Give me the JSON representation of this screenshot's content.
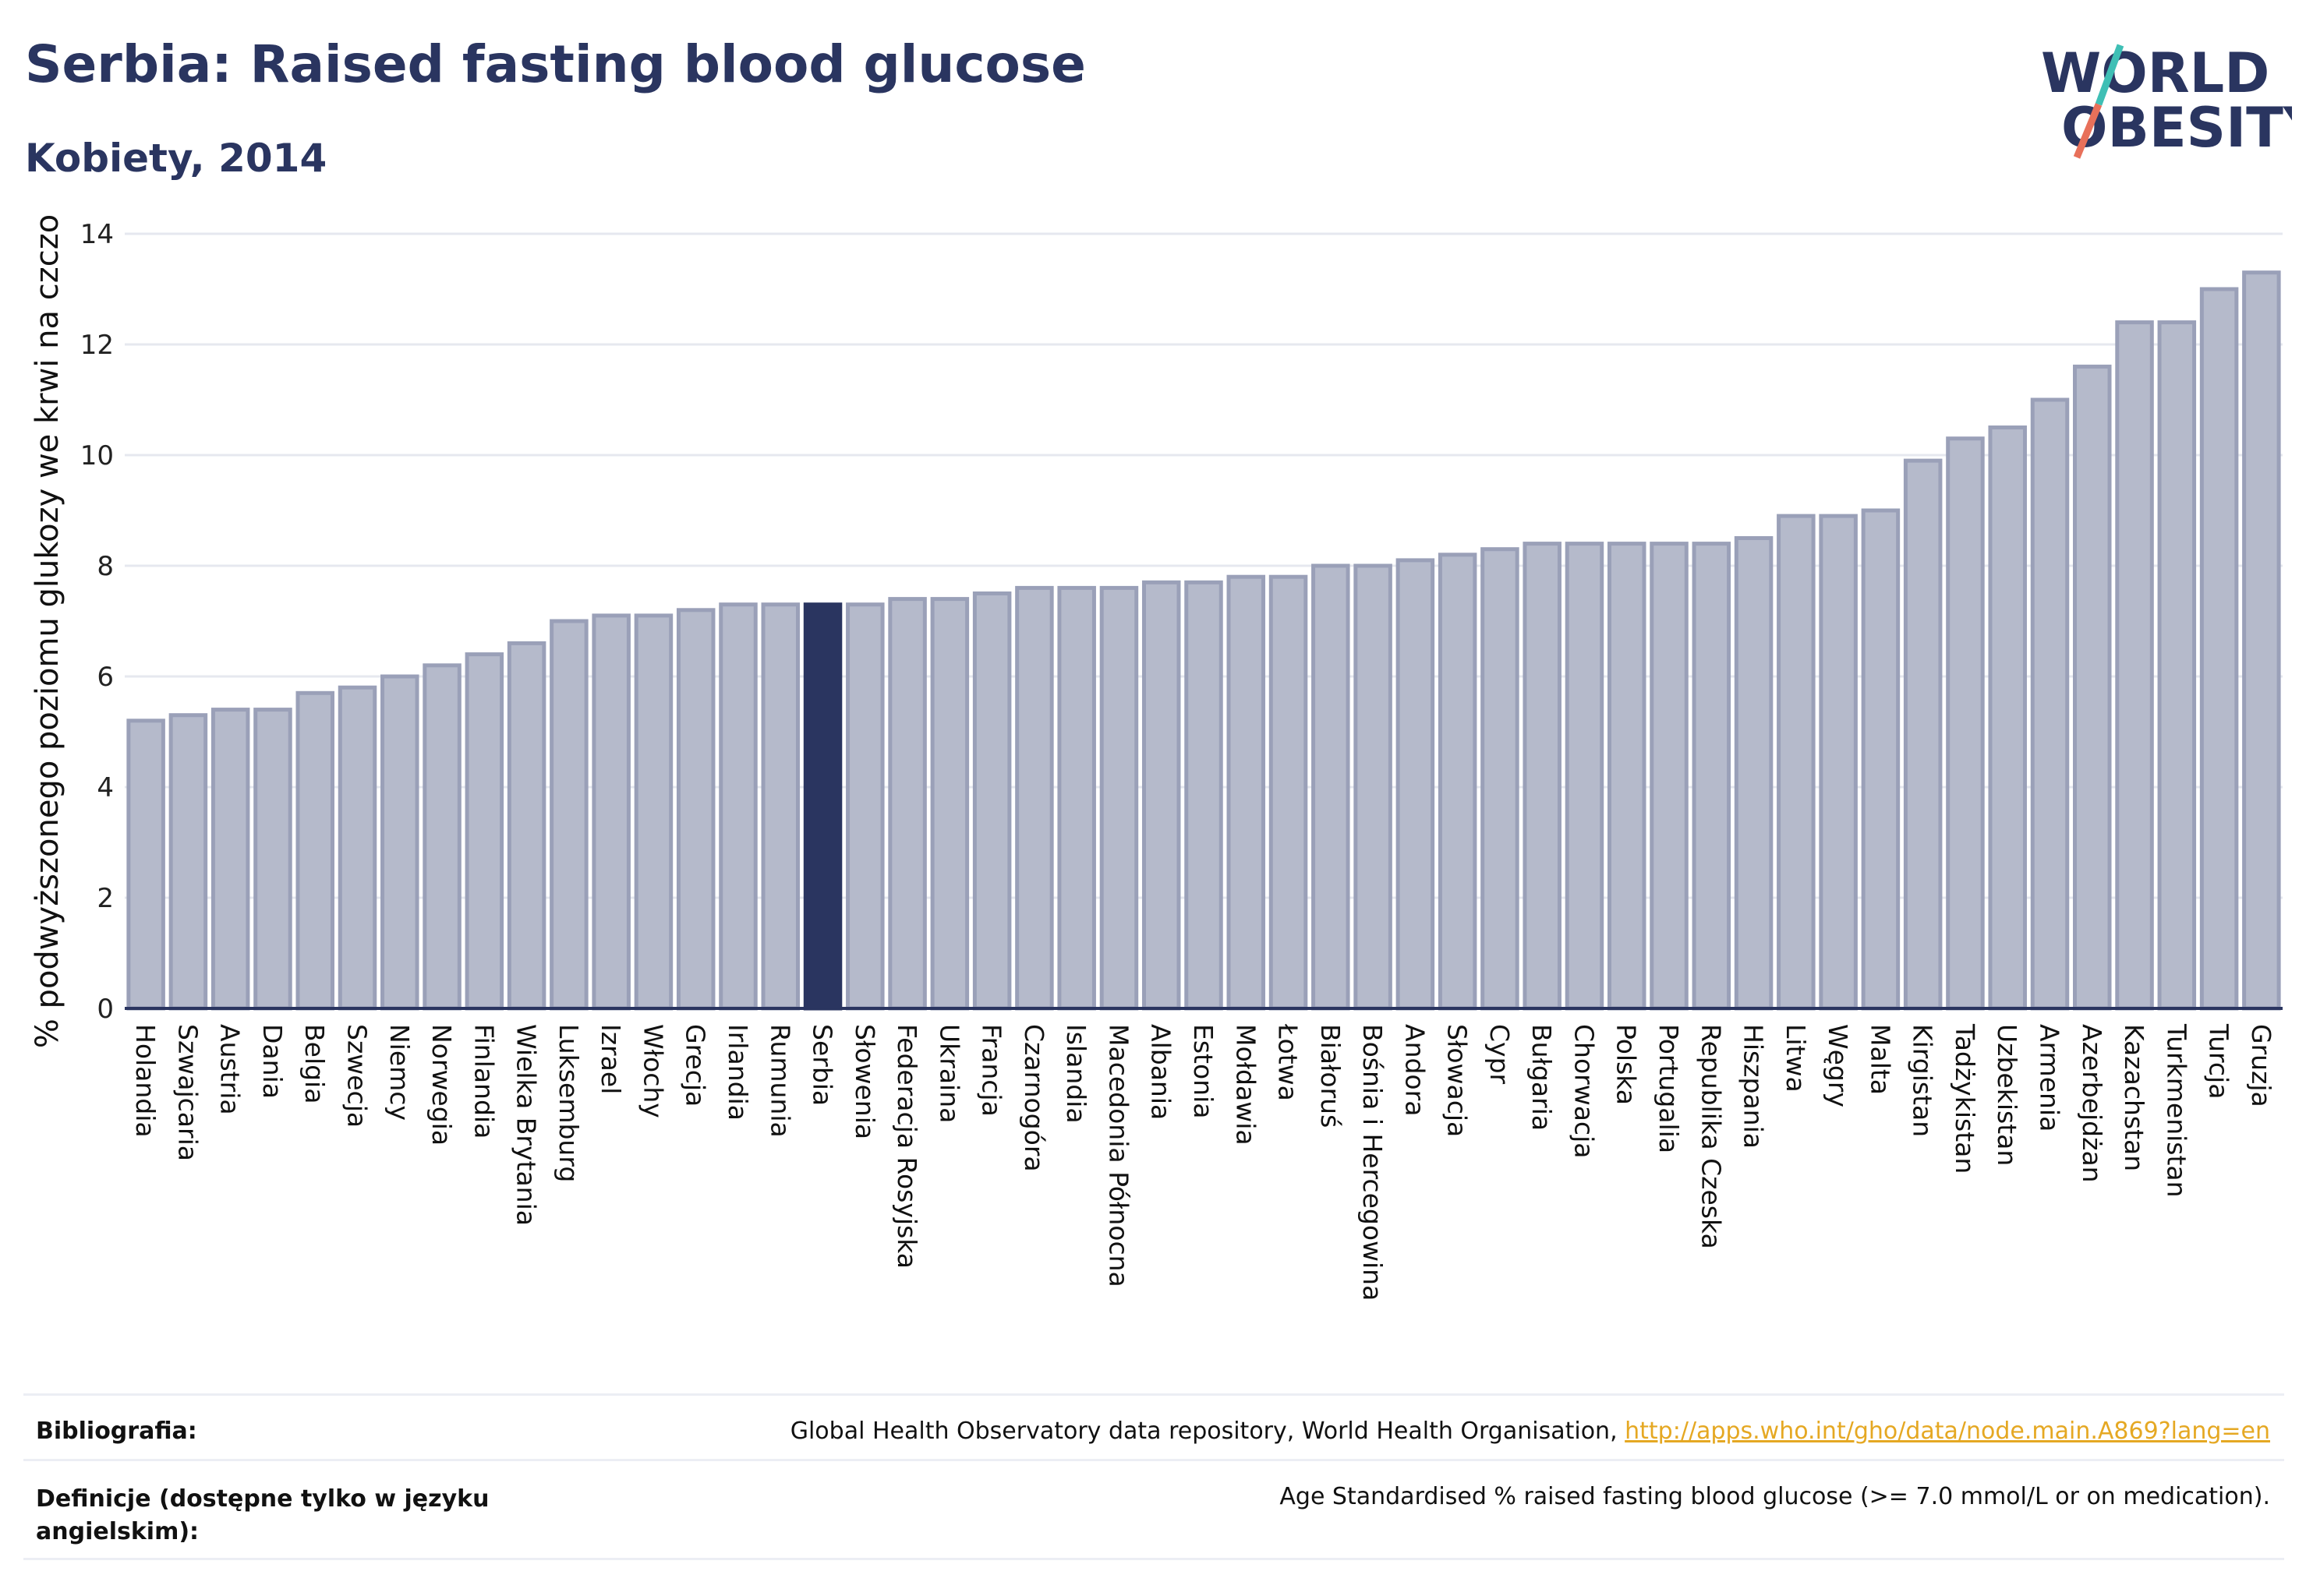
{
  "header": {
    "title": "Serbia: Raised fasting blood glucose",
    "subtitle": "Kobiety, 2014"
  },
  "logo": {
    "line1": "WORLD",
    "line2": "OBESITY"
  },
  "colors": {
    "bar": "#b5bacb",
    "bar_edge": "#9aa0b8",
    "highlight": "#2a3560",
    "accent_teal": "#3fbfb5",
    "accent_coral": "#e8705a"
  },
  "chart_data": {
    "type": "bar",
    "ylabel": "% podwyższonego poziomu glukozy we krwi na czczo",
    "ylim": [
      0,
      14
    ],
    "yticks": [
      0,
      2,
      4,
      6,
      8,
      10,
      12,
      14
    ],
    "highlight": "Serbia",
    "grid": true,
    "categories": [
      "Holandia",
      "Szwajcaria",
      "Austria",
      "Dania",
      "Belgia",
      "Szwecja",
      "Niemcy",
      "Norwegia",
      "Finlandia",
      "Wielka Brytania",
      "Luksemburg",
      "Izrael",
      "Włochy",
      "Grecja",
      "Irlandia",
      "Rumunia",
      "Serbia",
      "Słowenia",
      "Federacja Rosyjska",
      "Ukraina",
      "Francja",
      "Czarnogóra",
      "Islandia",
      "Macedonia Północna",
      "Albania",
      "Estonia",
      "Mołdawia",
      "Łotwa",
      "Białoruś",
      "Bośnia i Hercegowina",
      "Andora",
      "Słowacja",
      "Cypr",
      "Bułgaria",
      "Chorwacja",
      "Polska",
      "Portugalia",
      "Republika Czeska",
      "Hiszpania",
      "Litwa",
      "Węgry",
      "Malta",
      "Kirgistan",
      "Tadżykistan",
      "Uzbekistan",
      "Armenia",
      "Azerbejdżan",
      "Kazachstan",
      "Turkmenistan",
      "Turcja",
      "Gruzja"
    ],
    "values": [
      5.2,
      5.3,
      5.4,
      5.4,
      5.7,
      5.8,
      6.0,
      6.2,
      6.4,
      6.6,
      7.0,
      7.1,
      7.1,
      7.2,
      7.3,
      7.3,
      7.3,
      7.3,
      7.4,
      7.4,
      7.5,
      7.6,
      7.6,
      7.6,
      7.7,
      7.7,
      7.8,
      7.8,
      8.0,
      8.0,
      8.1,
      8.2,
      8.3,
      8.4,
      8.4,
      8.4,
      8.4,
      8.4,
      8.5,
      8.9,
      8.9,
      9.0,
      9.9,
      10.3,
      10.5,
      11.0,
      11.6,
      12.4,
      12.4,
      13.0,
      13.3
    ]
  },
  "footer": {
    "bibliography_label": "Bibliografia:",
    "bibliography_text": "Global Health Observatory data repository, World Health Organisation, ",
    "bibliography_link": "http://apps.who.int/gho/data/node.main.A869?lang=en",
    "definition_label": "Definicje (dostępne tylko w języku angielskim):",
    "definition_text": "Age Standardised % raised fasting blood glucose (>= 7.0 mmol/L or on medication)."
  }
}
